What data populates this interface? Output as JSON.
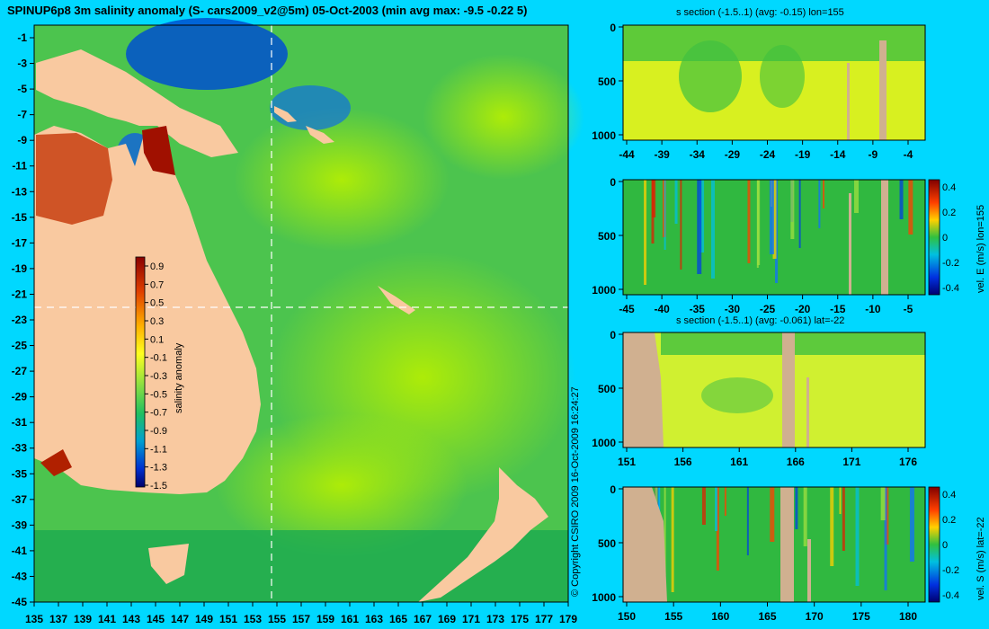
{
  "title": "SPINUP6p8 3m salinity anomaly (S- cars2009_v2@5m) 05-Oct-2003 (min avg max: -9.5 -0.22 5)",
  "map": {
    "lon_ticks": [
      "135",
      "137",
      "139",
      "141",
      "143",
      "145",
      "147",
      "149",
      "151",
      "153",
      "155",
      "157",
      "159",
      "161",
      "163",
      "165",
      "167",
      "169",
      "171",
      "173",
      "175",
      "177",
      "179"
    ],
    "lat_ticks": [
      "-1",
      "-3",
      "-5",
      "-7",
      "-9",
      "-11",
      "-13",
      "-15",
      "-17",
      "-19",
      "-21",
      "-23",
      "-25",
      "-27",
      "-29",
      "-31",
      "-33",
      "-35",
      "-37",
      "-39",
      "-41",
      "-43",
      "-45"
    ],
    "section_lon": 155,
    "section_lat": -22,
    "colorbar": {
      "label": "salinity anomaly",
      "ticks": [
        "0.9",
        "0.7",
        "0.5",
        "0.3",
        "0.1",
        "-0.1",
        "-0.3",
        "-0.5",
        "-0.7",
        "-0.9",
        "-1.1",
        "-1.3",
        "-1.5"
      ]
    },
    "colors": {
      "land": "#f9c9a0",
      "ocean": "#5ec84a",
      "grid_line": "#ffffff"
    }
  },
  "panels": [
    {
      "title": "s section (-1.5..1) (avg: -0.15) lon=155",
      "y_ticks": [
        "0",
        "500",
        "1000"
      ],
      "x_ticks": [
        "-44",
        "-39",
        "-34",
        "-29",
        "-24",
        "-19",
        "-14",
        "-9",
        "-4"
      ],
      "side_label": ""
    },
    {
      "title": "",
      "y_ticks": [
        "0",
        "500",
        "1000"
      ],
      "x_ticks": [
        "-45",
        "-40",
        "-35",
        "-30",
        "-25",
        "-20",
        "-15",
        "-10",
        "-5"
      ],
      "side_label": "vel. E (m/s) lon=155",
      "colorbar_ticks": [
        "0.4",
        "0.2",
        "0",
        "-0.2",
        "-0.4"
      ]
    },
    {
      "title": "s section (-1.5..1) (avg: -0.061) lat=-22",
      "y_ticks": [
        "0",
        "500",
        "1000"
      ],
      "x_ticks": [
        "151",
        "156",
        "161",
        "166",
        "171",
        "176"
      ],
      "side_label": ""
    },
    {
      "title": "",
      "y_ticks": [
        "0",
        "500",
        "1000"
      ],
      "x_ticks": [
        "150",
        "155",
        "160",
        "165",
        "170",
        "175",
        "180"
      ],
      "side_label": "vel. S (m/s) lat=-22",
      "colorbar_ticks": [
        "0.4",
        "0.2",
        "0",
        "-0.2",
        "-0.4"
      ]
    }
  ],
  "copyright": "© Copyright CSIRO 2009   16-Oct-2009 16:24:27"
}
